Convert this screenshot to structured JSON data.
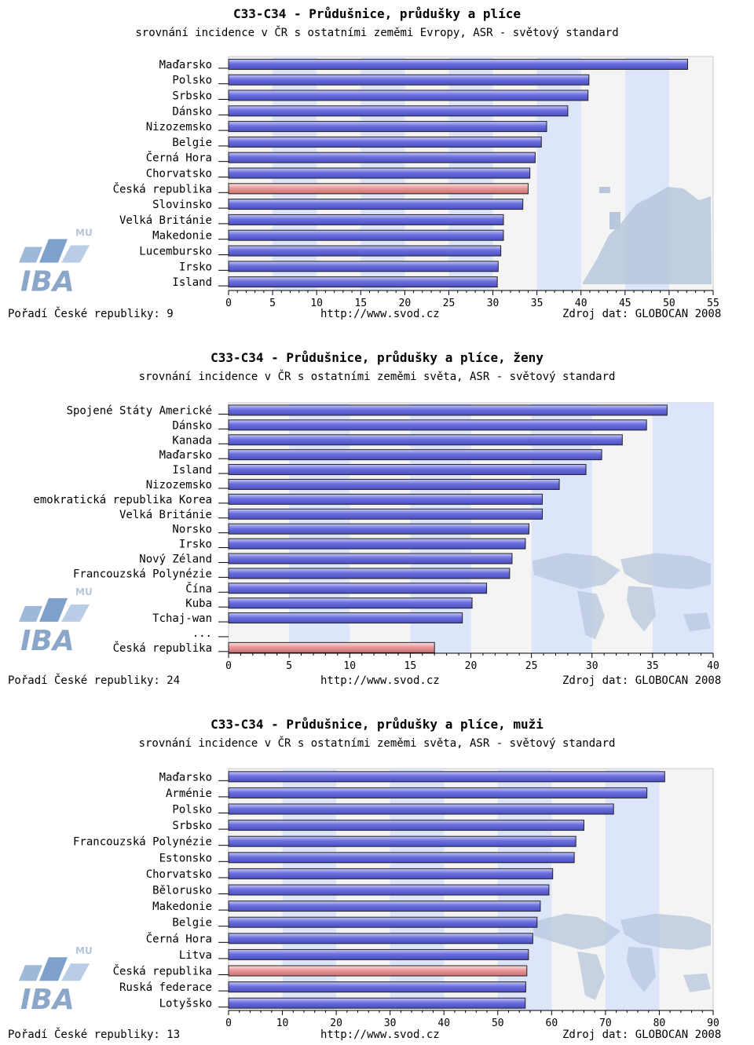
{
  "chart_data": [
    {
      "type": "bar",
      "orientation": "horizontal",
      "title": "C33-C34 - Průdušnice, průdušky a plíce",
      "subtitle": "srovnání incidence v ČR s ostatními zeměmi Evropy, ASR - světový standard",
      "categories": [
        "Maďarsko",
        "Polsko",
        "Srbsko",
        "Dánsko",
        "Nizozemsko",
        "Belgie",
        "Černá Hora",
        "Chorvatsko",
        "Česká republika",
        "Slovinsko",
        "Velká Británie",
        "Makedonie",
        "Lucembursko",
        "Irsko",
        "Island"
      ],
      "values": [
        52.1,
        40.9,
        40.8,
        38.5,
        36.1,
        35.5,
        34.8,
        34.2,
        34.0,
        33.4,
        31.2,
        31.2,
        30.9,
        30.6,
        30.5
      ],
      "highlight": "Česká republika",
      "xlim": [
        0,
        55
      ],
      "xticks": [
        0,
        5,
        10,
        15,
        20,
        25,
        30,
        35,
        40,
        45,
        50,
        55
      ],
      "rank_text": "Pořadí České republiky: 9",
      "url_text": "http://www.svod.cz",
      "source_text": "Zdroj dat: GLOBOCAN 2008",
      "background_map": "europe-map",
      "grid": true
    },
    {
      "type": "bar",
      "orientation": "horizontal",
      "title": "C33-C34 - Průdušnice, průdušky a plíce, ženy",
      "subtitle": "srovnání incidence v ČR s ostatními zeměmi světa, ASR - světový standard",
      "categories": [
        "Spojené Státy Americké",
        "Dánsko",
        "Kanada",
        "Maďarsko",
        "Island",
        "Nizozemsko",
        "emokratická republika Korea",
        "Velká Británie",
        "Norsko",
        "Irsko",
        "Nový Zéland",
        "Francouzská Polynézie",
        "Čína",
        "Kuba",
        "Tchaj-wan",
        "...",
        "Česká republika"
      ],
      "values": [
        36.2,
        34.5,
        32.5,
        30.8,
        29.5,
        27.3,
        25.9,
        25.9,
        24.8,
        24.5,
        23.4,
        23.2,
        21.3,
        20.1,
        19.3,
        null,
        17.0
      ],
      "highlight": "Česká republika",
      "xlim": [
        0,
        40
      ],
      "xticks": [
        0,
        5,
        10,
        15,
        20,
        25,
        30,
        35,
        40
      ],
      "rank_text": "Pořadí České republiky: 24",
      "url_text": "http://www.svod.cz",
      "source_text": "Zdroj dat: GLOBOCAN 2008",
      "background_map": "world-map",
      "grid": true
    },
    {
      "type": "bar",
      "orientation": "horizontal",
      "title": "C33-C34 - Průdušnice, průdušky a plíce, muži",
      "subtitle": "srovnání incidence v ČR s ostatními zeměmi světa, ASR - světový standard",
      "categories": [
        "Maďarsko",
        "Arménie",
        "Polsko",
        "Srbsko",
        "Francouzská Polynézie",
        "Estonsko",
        "Chorvatsko",
        "Bělorusko",
        "Makedonie",
        "Belgie",
        "Černá Hora",
        "Litva",
        "Česká republika",
        "Ruská federace",
        "Lotyšsko"
      ],
      "values": [
        81.0,
        77.7,
        71.5,
        66.0,
        64.5,
        64.2,
        60.2,
        59.5,
        57.9,
        57.3,
        56.5,
        55.7,
        55.4,
        55.2,
        55.1
      ],
      "highlight": "Česká republika",
      "xlim": [
        0,
        90
      ],
      "xticks": [
        0,
        10,
        20,
        30,
        40,
        50,
        60,
        70,
        80,
        90
      ],
      "rank_text": "Pořadí České republiky: 13",
      "url_text": "http://www.svod.cz",
      "source_text": "Zdroj dat: GLOBOCAN 2008",
      "background_map": "world-map",
      "grid": true
    }
  ],
  "logo": {
    "icon": "iba-mu-logo",
    "text": "IBA",
    "superscript": "MU"
  },
  "colors": {
    "bar": "#6b6fde",
    "bar_light": "#c6c8f6",
    "highlight_bar": "#e89a9a",
    "highlight_light": "#fbe0e0",
    "band_light": "#f4f4f4",
    "band_blue": "#dde5fb",
    "map": "#b7c7dc"
  }
}
